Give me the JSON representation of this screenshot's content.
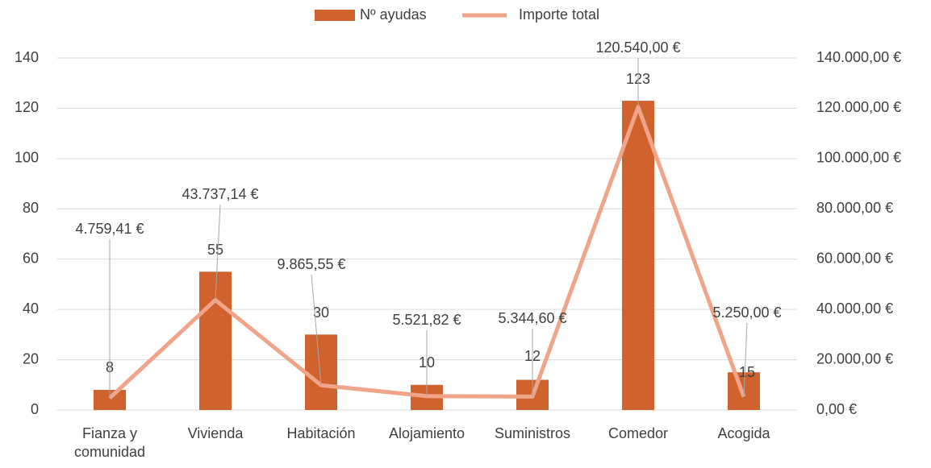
{
  "chart_data": {
    "type": "bar-line",
    "categories": [
      "Fianza y comunidad",
      "Vivienda",
      "Habitación",
      "Alojamiento",
      "Suministros",
      "Comedor",
      "Acogida"
    ],
    "series": [
      {
        "name": "Nº ayudas",
        "type": "bar",
        "color": "#d0622e",
        "values": [
          8,
          55,
          30,
          10,
          12,
          123,
          15
        ]
      },
      {
        "name": "Importe total",
        "type": "line",
        "axis": "y2",
        "color": "#f0a48a",
        "values": [
          4759.41,
          43737.14,
          9865.55,
          5521.82,
          5344.6,
          120540.0,
          5250.0
        ],
        "value_labels": [
          "4.759,41 €",
          "43.737,14 €",
          "9.865,55 €",
          "5.521,82 €",
          "5.344,60 €",
          "120.540,00 €",
          "5.250,00 €"
        ]
      }
    ],
    "ylim": [
      0,
      140
    ],
    "yticks": [
      0,
      20,
      40,
      60,
      80,
      100,
      120,
      140
    ],
    "y2lim": [
      0,
      140000
    ],
    "y2ticks": [
      {
        "value": 0,
        "label": "0,00 €"
      },
      {
        "value": 20000,
        "label": "20.000,00 €"
      },
      {
        "value": 40000,
        "label": "40.000,00 €"
      },
      {
        "value": 60000,
        "label": "60.000,00 €"
      },
      {
        "value": 80000,
        "label": "80.000,00 €"
      },
      {
        "value": 100000,
        "label": "100.000,00 €"
      },
      {
        "value": 120000,
        "label": "120.000,00 €"
      },
      {
        "value": 140000,
        "label": "140.000,00 €"
      }
    ],
    "grid": true,
    "legend": "top"
  }
}
